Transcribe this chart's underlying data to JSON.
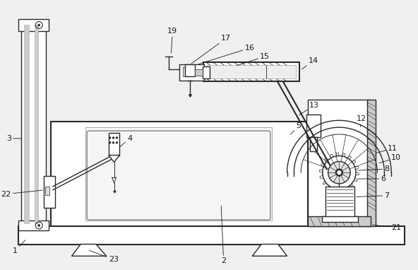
{
  "background_color": "#f0f0f0",
  "line_color": "#2a2a2a",
  "label_color": "#1a1a1a",
  "fig_width": 5.92,
  "fig_height": 3.82,
  "dpi": 100
}
